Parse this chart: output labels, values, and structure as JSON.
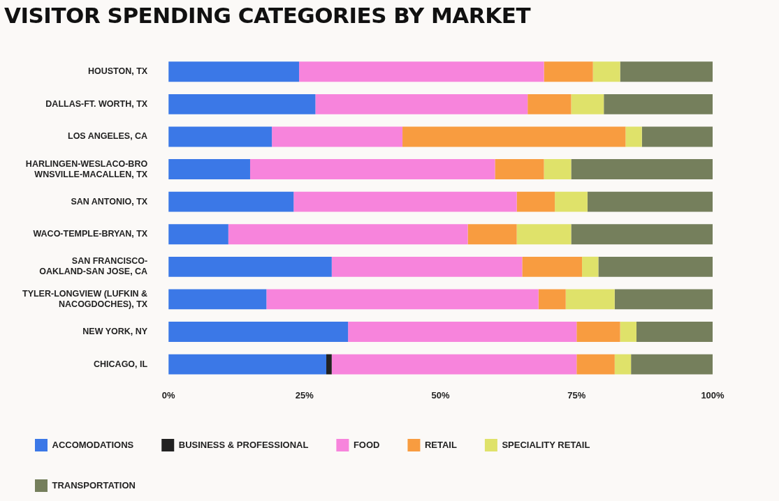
{
  "chart_data": {
    "type": "bar",
    "orientation": "horizontal",
    "stacked": true,
    "title": "VISITOR SPENDING CATEGORIES BY MARKET",
    "categories": [
      "HOUSTON, TX",
      "DALLAS-FT. WORTH, TX",
      "LOS ANGELES, CA",
      "HARLINGEN-WESLACO-BRO\nWNSVILLE-MACALLEN, TX",
      "SAN ANTONIO, TX",
      "WACO-TEMPLE-BRYAN, TX",
      "SAN FRANCISCO-\nOAKLAND-SAN JOSE, CA",
      "TYLER-LONGVIEW (LUFKIN &\nNACOGDOCHES), TX",
      "NEW YORK, NY",
      "CHICAGO, IL"
    ],
    "series": [
      {
        "name": "ACCOMODATIONS",
        "color": "#3b78e7",
        "values": [
          24,
          27,
          19,
          15,
          23,
          11,
          30,
          18,
          33,
          29
        ]
      },
      {
        "name": "BUSINESS & PROFESSIONAL",
        "color": "#222222",
        "values": [
          0,
          0,
          0,
          0,
          0,
          0,
          0,
          0,
          0,
          1
        ]
      },
      {
        "name": "FOOD",
        "color": "#f784dc",
        "values": [
          45,
          39,
          24,
          45,
          41,
          44,
          35,
          50,
          42,
          45
        ]
      },
      {
        "name": "RETAIL",
        "color": "#f89c40",
        "values": [
          9,
          8,
          41,
          9,
          7,
          9,
          11,
          5,
          8,
          7
        ]
      },
      {
        "name": "SPECIALITY RETAIL",
        "color": "#dfe26a",
        "values": [
          5,
          6,
          3,
          5,
          6,
          10,
          3,
          9,
          3,
          3
        ]
      },
      {
        "name": "TRANSPORTATION",
        "color": "#757f5c",
        "values": [
          17,
          20,
          13,
          26,
          23,
          26,
          21,
          18,
          14,
          15
        ]
      }
    ],
    "xlim": [
      0,
      100
    ],
    "xticks": [
      {
        "value": 0,
        "label": "0%"
      },
      {
        "value": 25,
        "label": "25%"
      },
      {
        "value": 50,
        "label": "50%"
      },
      {
        "value": 75,
        "label": "75%"
      },
      {
        "value": 100,
        "label": "100%"
      }
    ],
    "grid": false,
    "legend": "bottom"
  }
}
